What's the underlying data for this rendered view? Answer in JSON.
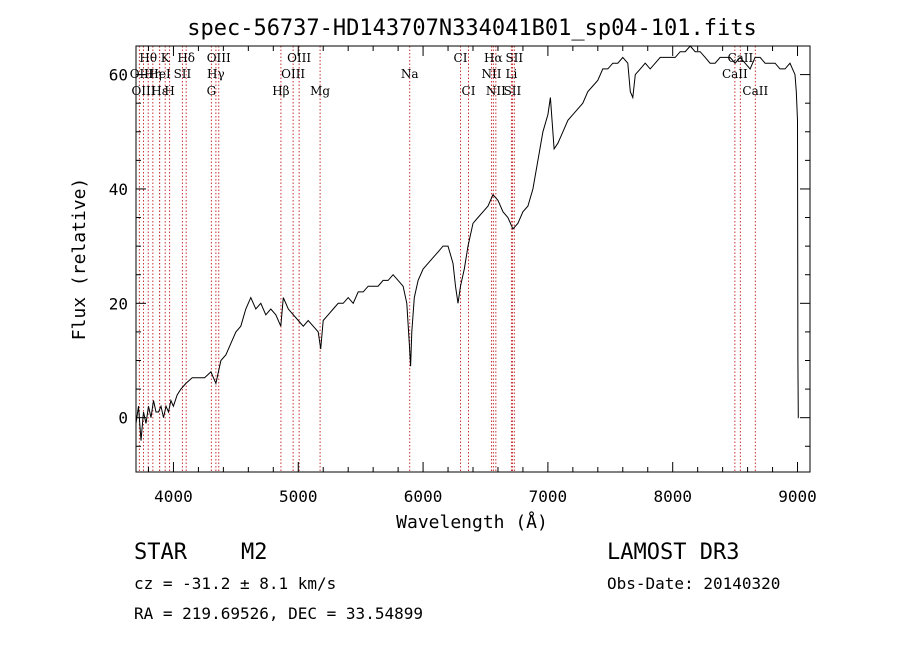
{
  "chart_data": {
    "type": "line",
    "title": "spec-56737-HD143707N334041B01_sp04-101.fits",
    "xlabel": "Wavelength (Å)",
    "ylabel": "Flux (relative)",
    "xlim": [
      3700,
      9100
    ],
    "ylim": [
      -9.5,
      65
    ],
    "xticks": [
      4000,
      5000,
      6000,
      7000,
      8000,
      9000
    ],
    "yticks": [
      0,
      20,
      40,
      60
    ],
    "grid": false,
    "series": [
      {
        "points": [
          [
            3700,
            -1
          ],
          [
            3720,
            2
          ],
          [
            3740,
            -4
          ],
          [
            3760,
            1
          ],
          [
            3780,
            -1
          ],
          [
            3800,
            2
          ],
          [
            3820,
            0
          ],
          [
            3840,
            3
          ],
          [
            3860,
            1
          ],
          [
            3880,
            1
          ],
          [
            3900,
            2
          ],
          [
            3920,
            0
          ],
          [
            3940,
            2
          ],
          [
            3960,
            1
          ],
          [
            3980,
            3
          ],
          [
            4000,
            2
          ],
          [
            4030,
            4
          ],
          [
            4060,
            5
          ],
          [
            4100,
            6
          ],
          [
            4150,
            7
          ],
          [
            4200,
            7
          ],
          [
            4250,
            7
          ],
          [
            4300,
            8
          ],
          [
            4340,
            6
          ],
          [
            4380,
            10
          ],
          [
            4420,
            11
          ],
          [
            4460,
            13
          ],
          [
            4500,
            15
          ],
          [
            4540,
            16
          ],
          [
            4580,
            19
          ],
          [
            4620,
            21
          ],
          [
            4660,
            19
          ],
          [
            4700,
            20
          ],
          [
            4740,
            18
          ],
          [
            4780,
            19
          ],
          [
            4820,
            18
          ],
          [
            4860,
            16
          ],
          [
            4880,
            21
          ],
          [
            4920,
            19
          ],
          [
            4960,
            18
          ],
          [
            5000,
            17
          ],
          [
            5040,
            16
          ],
          [
            5080,
            17
          ],
          [
            5120,
            16
          ],
          [
            5160,
            15
          ],
          [
            5180,
            12
          ],
          [
            5200,
            17
          ],
          [
            5240,
            18
          ],
          [
            5280,
            19
          ],
          [
            5320,
            20
          ],
          [
            5360,
            20
          ],
          [
            5400,
            21
          ],
          [
            5440,
            20
          ],
          [
            5480,
            22
          ],
          [
            5520,
            22
          ],
          [
            5560,
            23
          ],
          [
            5600,
            23
          ],
          [
            5640,
            23
          ],
          [
            5680,
            24
          ],
          [
            5720,
            24
          ],
          [
            5760,
            25
          ],
          [
            5800,
            24
          ],
          [
            5840,
            23
          ],
          [
            5870,
            20
          ],
          [
            5890,
            13
          ],
          [
            5900,
            9
          ],
          [
            5910,
            15
          ],
          [
            5930,
            21
          ],
          [
            5960,
            24
          ],
          [
            6000,
            26
          ],
          [
            6040,
            27
          ],
          [
            6080,
            28
          ],
          [
            6120,
            29
          ],
          [
            6160,
            30
          ],
          [
            6200,
            30
          ],
          [
            6240,
            27
          ],
          [
            6260,
            23
          ],
          [
            6280,
            20
          ],
          [
            6300,
            23
          ],
          [
            6330,
            26
          ],
          [
            6360,
            30
          ],
          [
            6400,
            34
          ],
          [
            6440,
            35
          ],
          [
            6480,
            36
          ],
          [
            6520,
            37
          ],
          [
            6560,
            39
          ],
          [
            6600,
            38
          ],
          [
            6640,
            36
          ],
          [
            6680,
            35
          ],
          [
            6720,
            33
          ],
          [
            6760,
            34
          ],
          [
            6800,
            36
          ],
          [
            6840,
            37
          ],
          [
            6880,
            40
          ],
          [
            6920,
            45
          ],
          [
            6960,
            50
          ],
          [
            7000,
            53
          ],
          [
            7020,
            56
          ],
          [
            7050,
            47
          ],
          [
            7080,
            48
          ],
          [
            7120,
            50
          ],
          [
            7160,
            52
          ],
          [
            7200,
            53
          ],
          [
            7240,
            54
          ],
          [
            7280,
            55
          ],
          [
            7320,
            57
          ],
          [
            7360,
            58
          ],
          [
            7400,
            59
          ],
          [
            7440,
            61
          ],
          [
            7480,
            61
          ],
          [
            7520,
            62
          ],
          [
            7560,
            62
          ],
          [
            7600,
            63
          ],
          [
            7640,
            62
          ],
          [
            7660,
            57
          ],
          [
            7680,
            56
          ],
          [
            7700,
            60
          ],
          [
            7740,
            61
          ],
          [
            7780,
            62
          ],
          [
            7820,
            61
          ],
          [
            7860,
            62
          ],
          [
            7900,
            63
          ],
          [
            7940,
            63
          ],
          [
            7980,
            63
          ],
          [
            8020,
            63
          ],
          [
            8060,
            64
          ],
          [
            8100,
            64
          ],
          [
            8140,
            65
          ],
          [
            8180,
            64
          ],
          [
            8220,
            64
          ],
          [
            8260,
            63
          ],
          [
            8300,
            62
          ],
          [
            8340,
            62
          ],
          [
            8380,
            63
          ],
          [
            8420,
            63
          ],
          [
            8460,
            63
          ],
          [
            8500,
            62
          ],
          [
            8540,
            63
          ],
          [
            8580,
            62
          ],
          [
            8620,
            61
          ],
          [
            8660,
            63
          ],
          [
            8700,
            63
          ],
          [
            8740,
            62
          ],
          [
            8780,
            62
          ],
          [
            8820,
            62
          ],
          [
            8860,
            61
          ],
          [
            8900,
            61
          ],
          [
            8940,
            62
          ],
          [
            8960,
            61
          ],
          [
            8980,
            60
          ],
          [
            8990,
            57
          ],
          [
            9000,
            52
          ],
          [
            9003,
            10
          ],
          [
            9006,
            0
          ],
          [
            9009,
            0
          ]
        ]
      }
    ],
    "lines": [
      {
        "label": "Hθ",
        "x": 3798,
        "row": 1
      },
      {
        "label": "K",
        "x": 3934,
        "row": 1
      },
      {
        "label": "Hδ",
        "x": 4102,
        "row": 1
      },
      {
        "label": "OIII",
        "x": 4363,
        "row": 1
      },
      {
        "label": "OIII",
        "x": 5007,
        "row": 1
      },
      {
        "label": "CI",
        "x": 6300,
        "row": 1
      },
      {
        "label": "Hα",
        "x": 6563,
        "row": 1
      },
      {
        "label": "SII",
        "x": 6731,
        "row": 1
      },
      {
        "label": "CaII",
        "x": 8542,
        "row": 1
      },
      {
        "label": "OII",
        "x": 3727,
        "row": 2
      },
      {
        "label": "Hη",
        "x": 3835,
        "row": 2
      },
      {
        "label": "HeI",
        "x": 3889,
        "row": 2
      },
      {
        "label": "SII",
        "x": 4072,
        "row": 2
      },
      {
        "label": "Hγ",
        "x": 4340,
        "row": 2
      },
      {
        "label": "OIII",
        "x": 4959,
        "row": 2
      },
      {
        "label": "Na",
        "x": 5893,
        "row": 2
      },
      {
        "label": "NII",
        "x": 6548,
        "row": 2
      },
      {
        "label": "Li",
        "x": 6708,
        "row": 2
      },
      {
        "label": "CaII",
        "x": 8498,
        "row": 2
      },
      {
        "label": "OIII",
        "x": 3760,
        "row": 3
      },
      {
        "label": "Hε",
        "x": 3889,
        "row": 3
      },
      {
        "label": "H",
        "x": 3969,
        "row": 3
      },
      {
        "label": "G",
        "x": 4304,
        "row": 3
      },
      {
        "label": "Hβ",
        "x": 4861,
        "row": 3
      },
      {
        "label": "Mg",
        "x": 5175,
        "row": 3
      },
      {
        "label": "CI",
        "x": 6364,
        "row": 3
      },
      {
        "label": "NII",
        "x": 6583,
        "row": 3
      },
      {
        "label": "SII",
        "x": 6716,
        "row": 3
      },
      {
        "label": "CaII",
        "x": 8662,
        "row": 3
      }
    ]
  },
  "footer": {
    "object_type": "STAR",
    "subclass": "M2",
    "survey": "LAMOST DR3",
    "redshift": "cz = -31.2 ± 8.1 km/s",
    "obs_date": "Obs-Date: 20140320",
    "coords": "RA = 219.69526, DEC =  33.54899"
  },
  "colors": {
    "line_markers": "#c83232",
    "spectrum": "#000000"
  }
}
